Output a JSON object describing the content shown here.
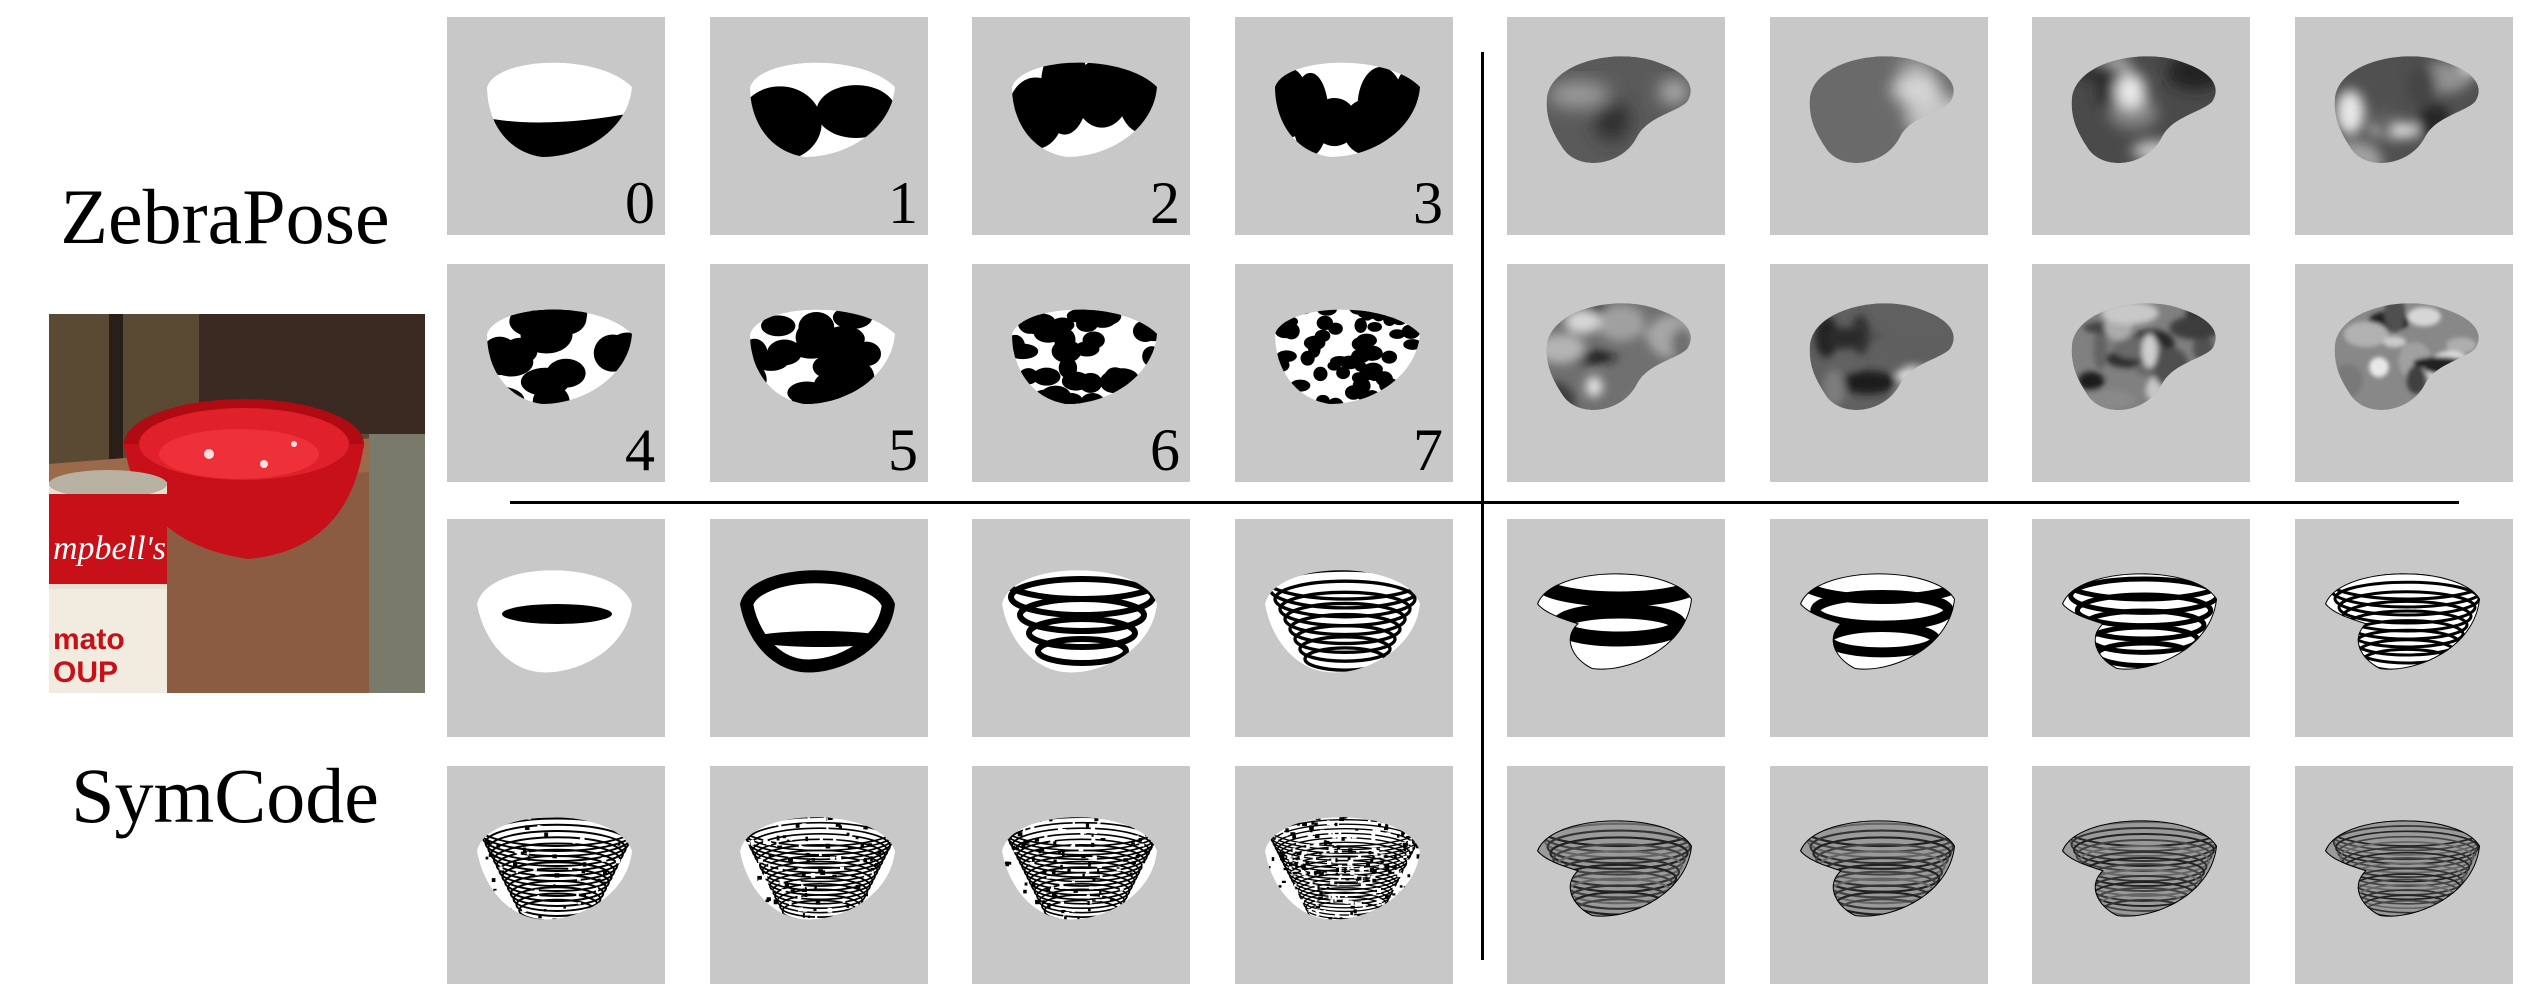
{
  "methods": {
    "zebrapose": "ZebraPose",
    "symcode": "SymCode"
  },
  "bit_labels": [
    "0",
    "1",
    "2",
    "3",
    "4",
    "5",
    "6",
    "7"
  ],
  "photo": {
    "can_text_top": "mpbell's",
    "can_text_bottom": "mato\nOUP"
  },
  "colors": {
    "panel_bg": "#c8c8c8",
    "bowl_red": "#d8141e"
  }
}
